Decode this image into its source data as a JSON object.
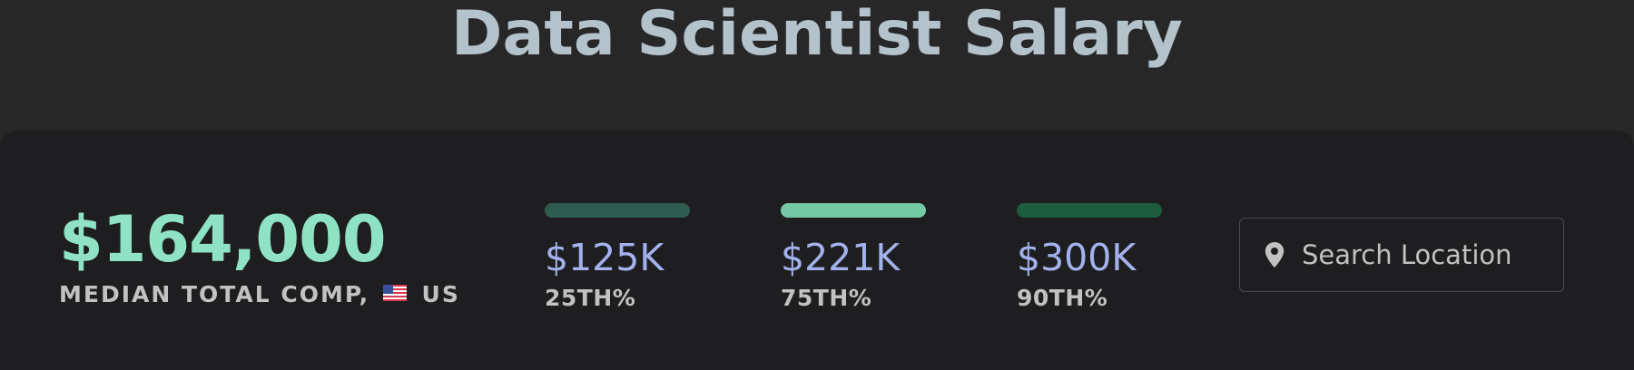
{
  "header": {
    "title": "Data Scientist Salary"
  },
  "median": {
    "value": "$164,000",
    "label_prefix": "MEDIAN TOTAL COMP,",
    "country": "US",
    "flag_icon": "us-flag-icon",
    "color": "#8fe3c4"
  },
  "percentiles": [
    {
      "value": "$125K",
      "label": "25TH%",
      "bar_color": "#2e5c4e"
    },
    {
      "value": "$221K",
      "label": "75TH%",
      "bar_color": "#75c8a6"
    },
    {
      "value": "$300K",
      "label": "90TH%",
      "bar_color": "#1d5c3e"
    }
  ],
  "search": {
    "placeholder": "Search Location",
    "value": "",
    "icon": "location-pin-icon"
  },
  "colors": {
    "background": "#272727",
    "panel": "#1e1e20",
    "title": "#b4c2cc",
    "percentile_value": "#a3b2ec",
    "label": "#c2c2c2"
  }
}
